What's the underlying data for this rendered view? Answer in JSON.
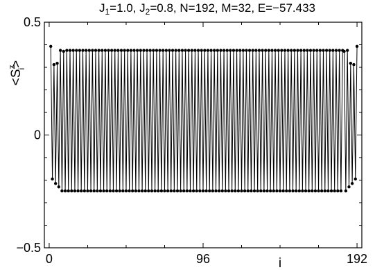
{
  "chart_data": {
    "type": "line",
    "title": "J1=1.0, J2=0.8, N=192, M=32, E=−57.433",
    "title_parts": {
      "j1_name": "J",
      "j1_sub": "1",
      "j1_val": "=1.0, ",
      "j2_name": "J",
      "j2_sub": "2",
      "rest": "=0.8, N=192, M=32, E=−57.433"
    },
    "xlabel": "i",
    "ylabel": "<S_i^z>",
    "ylabel_parts": {
      "open": "<S",
      "sup": "z",
      "sub": "i",
      "close": ">"
    },
    "xlim": [
      -3,
      195
    ],
    "ylim": [
      -0.5,
      0.5
    ],
    "x_ticks": [
      {
        "value": 0,
        "label": "0"
      },
      {
        "value": 96,
        "label": "96"
      },
      {
        "value": 192,
        "label": "192"
      }
    ],
    "y_ticks": [
      {
        "value": -0.5,
        "label": "−0.5"
      },
      {
        "value": 0,
        "label": "0"
      },
      {
        "value": 0.5,
        "label": "0.5"
      }
    ],
    "grid": false,
    "markers": "filled-circle",
    "series": [
      {
        "x_start": 1,
        "x_step": 1,
        "count": 192,
        "edge_values": [
          0.393,
          -0.195,
          0.312,
          -0.215,
          0.318,
          -0.23,
          0.375,
          -0.248,
          0.371
        ],
        "bulk_up": 0.375,
        "bulk_down": -0.248
      }
    ]
  }
}
